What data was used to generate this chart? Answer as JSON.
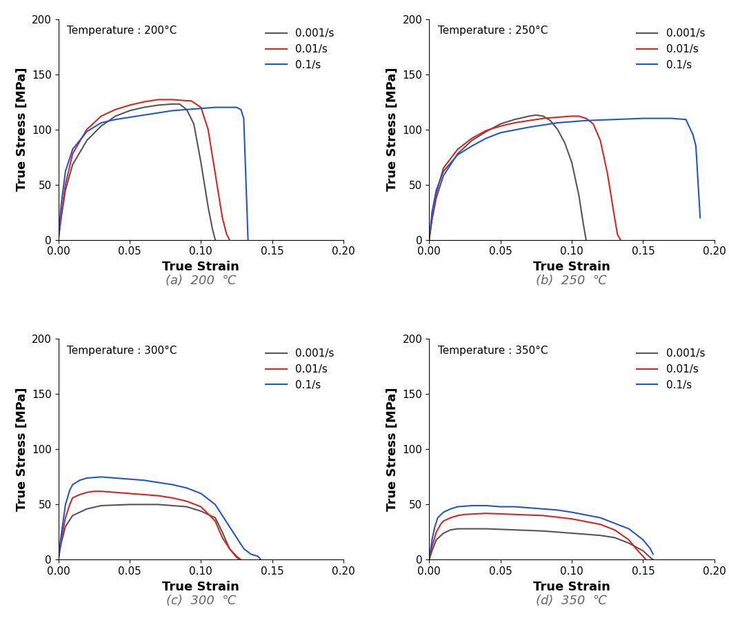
{
  "panels": [
    {
      "label": "(a)  200  ℃",
      "title": "Temperature : 200°C",
      "curves": [
        {
          "strain_rate": "0.001/s",
          "color": "#555555",
          "x": [
            0.0,
            0.002,
            0.005,
            0.01,
            0.02,
            0.03,
            0.04,
            0.05,
            0.06,
            0.07,
            0.08,
            0.085,
            0.09,
            0.095,
            0.1,
            0.105,
            0.108,
            0.11
          ],
          "y": [
            0,
            20,
            45,
            68,
            90,
            103,
            112,
            117,
            120,
            122,
            123,
            123,
            118,
            105,
            70,
            30,
            10,
            0
          ]
        },
        {
          "strain_rate": "0.01/s",
          "color": "#dd2222",
          "x": [
            0.0,
            0.002,
            0.005,
            0.01,
            0.02,
            0.03,
            0.04,
            0.05,
            0.06,
            0.07,
            0.08,
            0.09,
            0.093,
            0.1,
            0.105,
            0.11,
            0.115,
            0.118,
            0.12
          ],
          "y": [
            0,
            22,
            50,
            78,
            100,
            112,
            118,
            122,
            125,
            127,
            127,
            126,
            126,
            120,
            100,
            60,
            20,
            5,
            0
          ]
        },
        {
          "strain_rate": "0.1/s",
          "color": "#2255cc",
          "x": [
            0.0,
            0.002,
            0.005,
            0.01,
            0.02,
            0.03,
            0.04,
            0.05,
            0.06,
            0.07,
            0.08,
            0.09,
            0.1,
            0.11,
            0.12,
            0.125,
            0.128,
            0.13,
            0.133
          ],
          "y": [
            0,
            32,
            62,
            82,
            98,
            106,
            109,
            111,
            113,
            115,
            117,
            118,
            119,
            120,
            120,
            120,
            118,
            110,
            0
          ]
        }
      ]
    },
    {
      "label": "(b)  250  ℃",
      "title": "Temperature : 250°C",
      "curves": [
        {
          "strain_rate": "0.001/s",
          "color": "#555555",
          "x": [
            0.0,
            0.002,
            0.005,
            0.01,
            0.02,
            0.03,
            0.04,
            0.05,
            0.06,
            0.07,
            0.075,
            0.08,
            0.085,
            0.09,
            0.095,
            0.1,
            0.105,
            0.108,
            0.11
          ],
          "y": [
            0,
            18,
            38,
            58,
            78,
            90,
            98,
            105,
            109,
            112,
            113,
            112,
            108,
            100,
            88,
            70,
            40,
            15,
            0
          ]
        },
        {
          "strain_rate": "0.01/s",
          "color": "#dd2222",
          "x": [
            0.0,
            0.002,
            0.005,
            0.01,
            0.02,
            0.03,
            0.04,
            0.05,
            0.06,
            0.07,
            0.08,
            0.09,
            0.1,
            0.105,
            0.11,
            0.115,
            0.12,
            0.125,
            0.13,
            0.132,
            0.134
          ],
          "y": [
            0,
            20,
            42,
            65,
            82,
            92,
            99,
            103,
            106,
            108,
            110,
            111,
            112,
            112,
            110,
            105,
            90,
            60,
            20,
            5,
            0
          ]
        },
        {
          "strain_rate": "0.1/s",
          "color": "#2255cc",
          "x": [
            0.0,
            0.002,
            0.005,
            0.01,
            0.02,
            0.03,
            0.04,
            0.05,
            0.07,
            0.09,
            0.11,
            0.13,
            0.15,
            0.17,
            0.18,
            0.185,
            0.187,
            0.19
          ],
          "y": [
            0,
            25,
            45,
            62,
            77,
            85,
            92,
            97,
            102,
            106,
            108,
            109,
            110,
            110,
            109,
            95,
            85,
            20
          ]
        }
      ]
    },
    {
      "label": "(c)  300  ℃",
      "title": "Temperature : 300°C",
      "curves": [
        {
          "strain_rate": "0.001/s",
          "color": "#555555",
          "x": [
            0.0,
            0.002,
            0.005,
            0.01,
            0.02,
            0.03,
            0.05,
            0.07,
            0.09,
            0.1,
            0.11,
            0.115,
            0.12,
            0.125,
            0.127
          ],
          "y": [
            0,
            15,
            30,
            40,
            46,
            49,
            50,
            50,
            48,
            44,
            38,
            25,
            10,
            2,
            0
          ]
        },
        {
          "strain_rate": "0.01/s",
          "color": "#dd2222",
          "x": [
            0.0,
            0.002,
            0.005,
            0.008,
            0.01,
            0.015,
            0.02,
            0.025,
            0.03,
            0.04,
            0.05,
            0.06,
            0.07,
            0.08,
            0.09,
            0.1,
            0.11,
            0.115,
            0.12,
            0.125,
            0.128
          ],
          "y": [
            0,
            18,
            38,
            50,
            56,
            59,
            61,
            62,
            62,
            61,
            60,
            59,
            58,
            56,
            53,
            48,
            35,
            20,
            10,
            3,
            0
          ]
        },
        {
          "strain_rate": "0.1/s",
          "color": "#2255cc",
          "x": [
            0.0,
            0.002,
            0.005,
            0.008,
            0.01,
            0.015,
            0.02,
            0.03,
            0.04,
            0.05,
            0.06,
            0.07,
            0.08,
            0.09,
            0.1,
            0.11,
            0.12,
            0.13,
            0.135,
            0.14,
            0.142
          ],
          "y": [
            0,
            22,
            50,
            63,
            68,
            72,
            74,
            75,
            74,
            73,
            72,
            70,
            68,
            65,
            60,
            50,
            30,
            10,
            5,
            3,
            0
          ]
        }
      ]
    },
    {
      "label": "(d)  350  ℃",
      "title": "Temperature : 350°C",
      "curves": [
        {
          "strain_rate": "0.001/s",
          "color": "#555555",
          "x": [
            0.0,
            0.002,
            0.005,
            0.01,
            0.015,
            0.02,
            0.04,
            0.06,
            0.08,
            0.1,
            0.12,
            0.13,
            0.14,
            0.15,
            0.155,
            0.157
          ],
          "y": [
            0,
            8,
            18,
            24,
            27,
            28,
            28,
            27,
            26,
            24,
            22,
            20,
            15,
            8,
            2,
            0
          ]
        },
        {
          "strain_rate": "0.01/s",
          "color": "#dd2222",
          "x": [
            0.0,
            0.002,
            0.005,
            0.008,
            0.01,
            0.015,
            0.02,
            0.025,
            0.04,
            0.06,
            0.08,
            0.1,
            0.12,
            0.13,
            0.14,
            0.145,
            0.15,
            0.152
          ],
          "y": [
            0,
            12,
            25,
            32,
            35,
            38,
            40,
            41,
            42,
            41,
            40,
            37,
            32,
            27,
            18,
            10,
            3,
            0
          ]
        },
        {
          "strain_rate": "0.1/s",
          "color": "#2255cc",
          "x": [
            0.0,
            0.002,
            0.004,
            0.006,
            0.01,
            0.015,
            0.02,
            0.03,
            0.04,
            0.05,
            0.06,
            0.07,
            0.08,
            0.09,
            0.1,
            0.12,
            0.14,
            0.15,
            0.155,
            0.157
          ],
          "y": [
            0,
            18,
            30,
            38,
            43,
            46,
            48,
            49,
            49,
            48,
            48,
            47,
            46,
            45,
            43,
            38,
            28,
            18,
            10,
            5
          ]
        }
      ]
    }
  ],
  "xlim": [
    0.0,
    0.2
  ],
  "ylim": [
    0,
    200
  ],
  "xticks": [
    0.0,
    0.05,
    0.1,
    0.15,
    0.2
  ],
  "yticks": [
    0,
    50,
    100,
    150,
    200
  ],
  "xlabel": "True Strain",
  "ylabel": "True Stress [MPa]",
  "legend_labels": [
    "0.001/s",
    "0.01/s",
    "0.1/s"
  ],
  "legend_colors": [
    "#555555",
    "#dd2222",
    "#2255cc"
  ],
  "line_width": 1.5,
  "title_fontsize": 11,
  "axis_label_fontsize": 13,
  "tick_fontsize": 11,
  "legend_fontsize": 11,
  "caption_fontsize": 13
}
